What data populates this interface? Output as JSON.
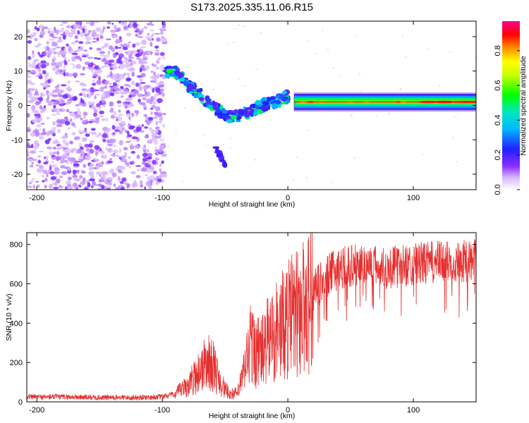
{
  "title": "S173.2025.335.11.06.R15",
  "colors": {
    "snr_line": "#e53030",
    "frame": "#000000",
    "background": "#ffffff"
  },
  "chart_data": [
    {
      "type": "heatmap",
      "name": "spectrogram",
      "xlabel": "Height of straight line (km)",
      "ylabel": "Frequency (Hz)",
      "xlim": [
        -208,
        150
      ],
      "ylim": [
        -24.5,
        24.5
      ],
      "xticks": [
        -200,
        -100,
        0,
        100
      ],
      "xtick_labels": [
        "-200",
        "-100",
        "0",
        "100"
      ],
      "yticks": [
        -20,
        -10,
        0,
        10,
        20
      ],
      "ytick_labels": [
        "-20",
        "-10",
        "0",
        "10",
        "20"
      ],
      "colorbar": {
        "label": "Normalized spectral amplitude",
        "range": [
          0.0,
          0.97
        ],
        "ticks": [
          0.0,
          0.2,
          0.4,
          0.6,
          0.8
        ],
        "tick_labels": [
          "0.0",
          "0.2",
          "0.4",
          "0.6",
          "0.8"
        ],
        "colormap": "rainbow (white-violet-blue-cyan-green-yellow-orange-red-magenta)"
      },
      "features": [
        {
          "description": "diffuse noise field",
          "x_range": [
            -208,
            -98
          ],
          "freq_range": [
            -24.5,
            24.5
          ],
          "amplitude": 0.1
        },
        {
          "description": "descending emission track",
          "points": [
            [
              -98,
              9.5
            ],
            [
              -90,
              10
            ],
            [
              -80,
              6
            ],
            [
              -70,
              3
            ],
            [
              -60,
              0
            ],
            [
              -50,
              -3
            ],
            [
              -40,
              -3
            ],
            [
              -30,
              -2
            ],
            [
              -20,
              0
            ],
            [
              -10,
              1
            ],
            [
              0,
              2.5
            ]
          ],
          "amplitude": 0.2
        },
        {
          "description": "lower branch",
          "points": [
            [
              -58,
              -12
            ],
            [
              -50,
              -17
            ]
          ],
          "amplitude": 0.15
        },
        {
          "description": "steady tone",
          "x_range": [
            5,
            150
          ],
          "frequency_hz": 1.0,
          "amplitude": 0.85
        }
      ]
    },
    {
      "type": "line",
      "name": "snr",
      "xlabel": "Height of straight line (km)",
      "ylabel": "SNR (10 * v/v)",
      "xlim": [
        -208,
        150
      ],
      "ylim": [
        0,
        860
      ],
      "xticks": [
        -200,
        -100,
        0,
        100
      ],
      "xtick_labels": [
        "-200",
        "-100",
        "0",
        "100"
      ],
      "yticks": [
        0,
        200,
        400,
        600,
        800
      ],
      "ytick_labels": [
        "0",
        "200",
        "400",
        "600",
        "800"
      ],
      "series": [
        {
          "name": "SNR",
          "x": [
            -208,
            -180,
            -150,
            -120,
            -100,
            -90,
            -80,
            -70,
            -65,
            -60,
            -55,
            -50,
            -45,
            -40,
            -35,
            -30,
            -25,
            -20,
            -15,
            -10,
            -5,
            0,
            10,
            20,
            30,
            40,
            50,
            60,
            80,
            100,
            120,
            150
          ],
          "values": [
            25,
            25,
            22,
            22,
            25,
            40,
            80,
            160,
            200,
            190,
            120,
            60,
            40,
            45,
            150,
            300,
            250,
            260,
            320,
            360,
            380,
            420,
            460,
            560,
            630,
            680,
            690,
            700,
            680,
            700,
            710,
            720
          ]
        }
      ]
    }
  ]
}
